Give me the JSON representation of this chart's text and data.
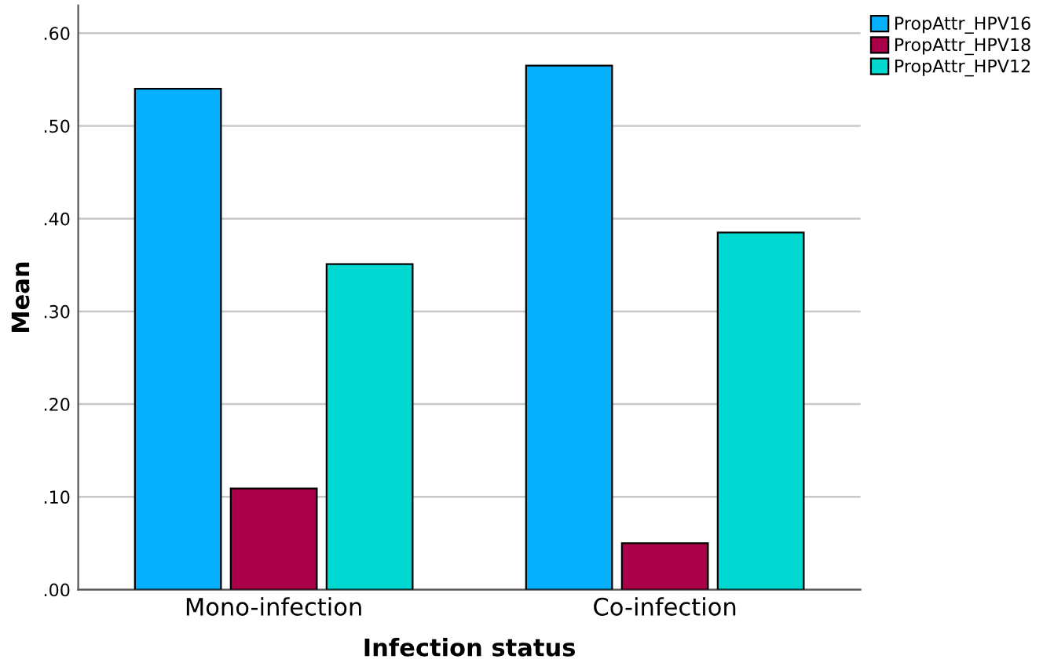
{
  "chart_data": {
    "type": "bar",
    "xlabel": "Infection status",
    "ylabel": "Mean",
    "categories": [
      "Mono-infection",
      "Co-infection"
    ],
    "series": [
      {
        "name": "PropAttr_HPV16",
        "color": "#06b0fc",
        "values": [
          0.54,
          0.565
        ]
      },
      {
        "name": "PropAttr_HPV18",
        "color": "#aa0049",
        "values": [
          0.109,
          0.05
        ]
      },
      {
        "name": "PropAttr_HPV12",
        "color": "#00d8d2",
        "values": [
          0.351,
          0.385
        ]
      }
    ],
    "ylim": [
      0,
      0.63
    ],
    "yticks": [
      {
        "value": 0,
        "label": ".00"
      },
      {
        "value": 0.1,
        "label": ".10"
      },
      {
        "value": 0.2,
        "label": ".20"
      },
      {
        "value": 0.3,
        "label": ".30"
      },
      {
        "value": 0.4,
        "label": ".40"
      },
      {
        "value": 0.5,
        "label": ".50"
      },
      {
        "value": 0.6,
        "label": ".60"
      }
    ],
    "grid": "y",
    "legend": "top right"
  }
}
